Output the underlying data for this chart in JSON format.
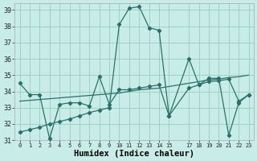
{
  "bg_color": "#c8ede8",
  "grid_color": "#a0d0c8",
  "line_color": "#2a706a",
  "xlabel": "Humidex (Indice chaleur)",
  "xlim": [
    -0.5,
    23.5
  ],
  "ylim": [
    31,
    39.4
  ],
  "yticks": [
    31,
    32,
    33,
    34,
    35,
    36,
    37,
    38,
    39
  ],
  "xticks": [
    0,
    1,
    2,
    3,
    4,
    5,
    6,
    7,
    8,
    9,
    10,
    11,
    12,
    13,
    14,
    15,
    17,
    18,
    19,
    20,
    21,
    22,
    23
  ],
  "line_jagged_x": [
    0,
    1,
    2,
    3,
    4,
    5,
    6,
    7,
    8,
    9,
    10,
    11,
    12,
    13,
    14,
    15,
    17,
    18,
    19,
    20,
    21,
    22,
    23
  ],
  "line_jagged_y": [
    34.5,
    33.8,
    33.8,
    31.1,
    33.2,
    33.3,
    33.3,
    33.1,
    34.9,
    33.2,
    34.1,
    34.1,
    34.2,
    34.3,
    34.4,
    32.5,
    36.0,
    34.4,
    34.8,
    34.8,
    31.3,
    33.3,
    33.8
  ],
  "line_trend_x": [
    0,
    1,
    2,
    3,
    4,
    5,
    6,
    7,
    8,
    9,
    10,
    11,
    12,
    13,
    14,
    15,
    17,
    18,
    19,
    20,
    21,
    22,
    23
  ],
  "line_trend_y": [
    33.4,
    33.45,
    33.5,
    33.55,
    33.6,
    33.65,
    33.7,
    33.75,
    33.8,
    33.85,
    33.9,
    34.0,
    34.1,
    34.15,
    34.2,
    34.3,
    34.5,
    34.6,
    34.7,
    34.75,
    34.85,
    34.9,
    35.0
  ],
  "line_steep_x": [
    0,
    1,
    2,
    3,
    4,
    5,
    6,
    7,
    8,
    9,
    10,
    11,
    12,
    13,
    14,
    15,
    17,
    18,
    19,
    20,
    21,
    22,
    23
  ],
  "line_steep_y": [
    31.5,
    31.65,
    31.8,
    32.0,
    32.15,
    32.3,
    32.5,
    32.7,
    32.85,
    33.0,
    38.1,
    39.1,
    39.2,
    37.9,
    37.75,
    32.5,
    34.2,
    34.4,
    34.6,
    34.65,
    34.75,
    33.4,
    33.8
  ]
}
